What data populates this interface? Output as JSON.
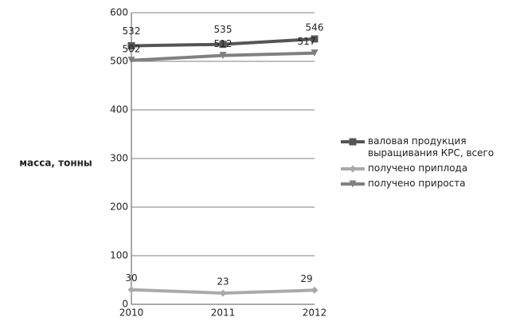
{
  "chart_data": {
    "type": "line",
    "y_label": "масса, тонны",
    "categories": [
      "2010",
      "2011",
      "2012"
    ],
    "series": [
      {
        "name": "валовая продукция выращивания КРС, всего",
        "color": "#555555",
        "marker": "square",
        "values": [
          532,
          535,
          546
        ]
      },
      {
        "name": "получено приплода",
        "color": "#aaaaaa",
        "marker": "diamond",
        "values": [
          30,
          23,
          29
        ]
      },
      {
        "name": "получено прироста",
        "color": "#808080",
        "marker": "triangle-down",
        "values": [
          502,
          512,
          517
        ]
      }
    ],
    "ylim": [
      0,
      600
    ],
    "yticks": [
      0,
      100,
      200,
      300,
      400,
      500,
      600
    ],
    "grid": true,
    "legend": "right"
  }
}
